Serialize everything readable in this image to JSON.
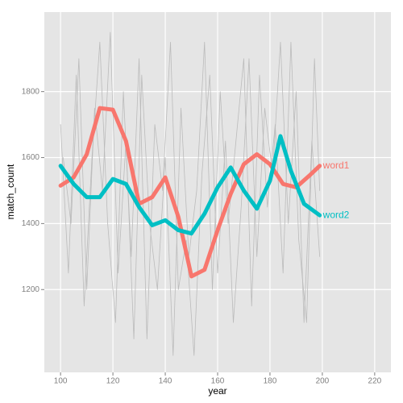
{
  "chart_data": {
    "type": "line",
    "x_label": "year",
    "y_label": "match_count",
    "xlim": [
      93.8,
      226.2
    ],
    "ylim": [
      949,
      2041
    ],
    "xticks": [
      100,
      120,
      140,
      160,
      180,
      200,
      220
    ],
    "yticks": [
      1200,
      1400,
      1600,
      1800
    ],
    "grid": true,
    "series": [
      {
        "color": "#bbbbbb",
        "x": [
          100,
          103,
          106,
          109,
          112,
          115,
          118,
          121,
          124,
          127,
          130,
          133,
          136,
          139,
          142,
          145,
          148,
          151,
          154,
          157,
          160,
          163,
          166,
          169,
          172,
          175,
          178,
          181,
          184,
          187,
          190,
          193,
          196,
          199
        ],
        "values": [
          1700,
          1250,
          1850,
          1150,
          1600,
          1950,
          1400,
          1100,
          1800,
          1300,
          1900,
          1050,
          1700,
          1500,
          1950,
          1200,
          1350,
          1000,
          1550,
          1850,
          1250,
          1650,
          1100,
          1450,
          1900,
          1300,
          1750,
          1550,
          1950,
          1400,
          1800,
          1100,
          1650,
          1300
        ]
      },
      {
        "color": "#bbbbbb",
        "x": [
          101,
          104,
          107,
          110,
          113,
          116,
          119,
          122,
          125,
          128,
          131,
          134,
          137,
          140,
          143,
          146,
          149,
          152,
          155,
          158,
          161,
          164,
          167,
          170,
          173,
          176,
          179,
          182,
          185,
          188,
          191,
          194,
          197,
          199
        ],
        "values": [
          1600,
          1400,
          1900,
          1200,
          1750,
          1500,
          1980,
          1250,
          1650,
          1050,
          1850,
          1400,
          1200,
          1600,
          1000,
          1750,
          1300,
          1500,
          1950,
          1200,
          1800,
          1400,
          1650,
          1900,
          1150,
          1850,
          1450,
          1700,
          1250,
          1950,
          1350,
          1100,
          1900,
          1500
        ]
      },
      {
        "name": "word1",
        "color": "#F8766D",
        "x": [
          100,
          105,
          110,
          115,
          120,
          125,
          130,
          135,
          140,
          145,
          150,
          155,
          160,
          165,
          170,
          175,
          180,
          185,
          190,
          195,
          199
        ],
        "values": [
          1515,
          1540,
          1610,
          1750,
          1745,
          1650,
          1460,
          1480,
          1540,
          1420,
          1240,
          1260,
          1380,
          1490,
          1580,
          1610,
          1580,
          1520,
          1510,
          1545,
          1575
        ]
      },
      {
        "name": "word2",
        "color": "#00BFC4",
        "x": [
          100,
          105,
          110,
          115,
          120,
          125,
          130,
          135,
          140,
          145,
          150,
          155,
          160,
          165,
          170,
          175,
          180,
          184,
          188,
          193,
          199
        ],
        "values": [
          1575,
          1520,
          1480,
          1480,
          1535,
          1520,
          1450,
          1395,
          1410,
          1380,
          1370,
          1430,
          1510,
          1570,
          1500,
          1445,
          1530,
          1665,
          1560,
          1460,
          1425
        ]
      }
    ]
  }
}
